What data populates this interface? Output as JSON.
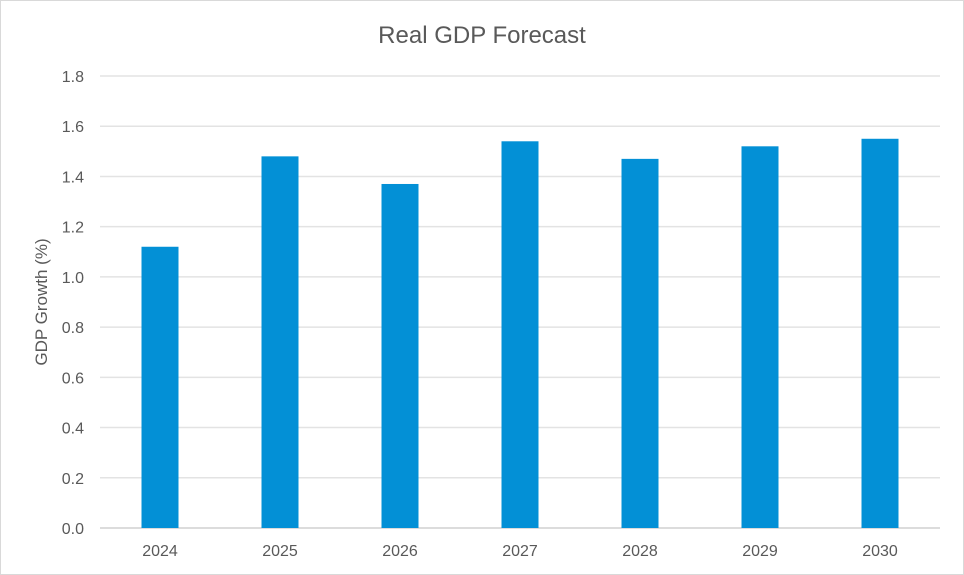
{
  "chart_data": {
    "type": "bar",
    "title": "Real GDP Forecast",
    "xlabel": "",
    "ylabel": "GDP Growth (%)",
    "categories": [
      "2024",
      "2025",
      "2026",
      "2027",
      "2028",
      "2029",
      "2030"
    ],
    "values": [
      1.12,
      1.48,
      1.37,
      1.54,
      1.47,
      1.52,
      1.55
    ],
    "ylim": [
      0,
      1.8
    ],
    "yticks": [
      "0.0",
      "0.2",
      "0.4",
      "0.6",
      "0.8",
      "1.0",
      "1.2",
      "1.4",
      "1.6",
      "1.8"
    ],
    "grid": true,
    "legend": "none",
    "bar_color": "#0390d6"
  }
}
